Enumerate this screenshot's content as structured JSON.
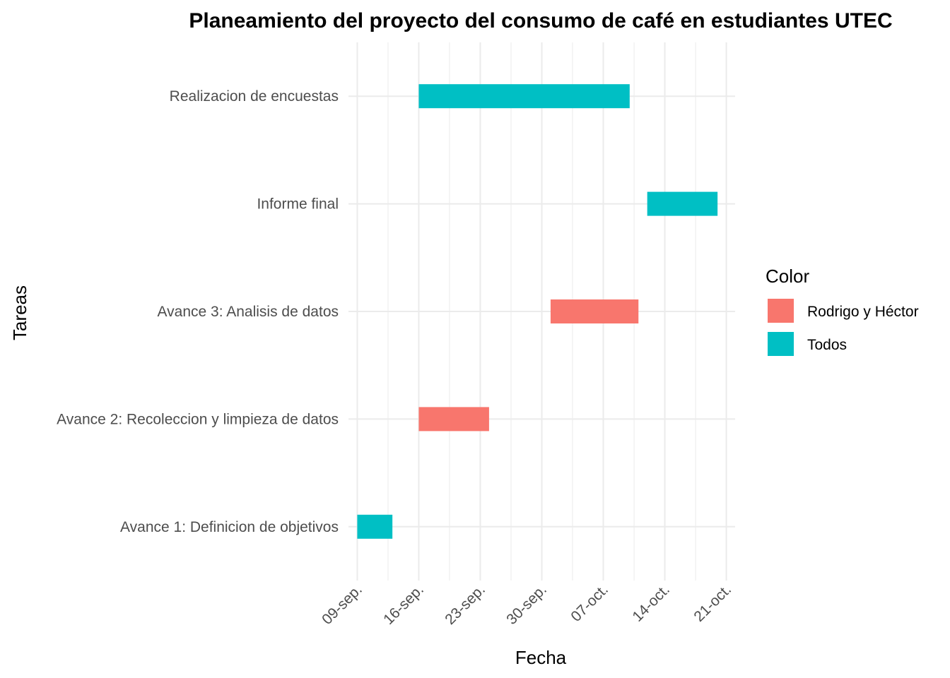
{
  "chart_data": {
    "type": "gantt",
    "title": "Planeamiento del proyecto del consumo de café en estudiantes UTEC",
    "xlabel": "Fecha",
    "ylabel": "Tareas",
    "x_axis": {
      "type": "date",
      "ticks": [
        "09-sep.",
        "16-sep.",
        "23-sep.",
        "30-sep.",
        "07-oct.",
        "14-oct.",
        "21-oct."
      ],
      "tick_dates": [
        "2024-09-09",
        "2024-09-16",
        "2024-09-23",
        "2024-09-30",
        "2024-10-07",
        "2024-10-14",
        "2024-10-21"
      ],
      "range": [
        "2024-09-08",
        "2024-10-22"
      ]
    },
    "grid": true,
    "legend": {
      "title": "Color",
      "position": "right",
      "entries": [
        {
          "label": "Rodrigo y Héctor",
          "color": "#F8766D"
        },
        {
          "label": "Todos",
          "color": "#00BFC4"
        }
      ]
    },
    "tasks": [
      {
        "name": "Realizacion de encuestas",
        "start": "2024-09-16",
        "end": "2024-10-10",
        "group": "Todos"
      },
      {
        "name": "Informe final",
        "start": "2024-10-12",
        "end": "2024-10-20",
        "group": "Todos"
      },
      {
        "name": "Avance 3: Analisis de datos",
        "start": "2024-10-01",
        "end": "2024-10-11",
        "group": "Rodrigo y Héctor"
      },
      {
        "name": "Avance 2: Recoleccion y limpieza de datos",
        "start": "2024-09-16",
        "end": "2024-09-24",
        "group": "Rodrigo y Héctor"
      },
      {
        "name": "Avance 1: Definicion de objetivos",
        "start": "2024-09-09",
        "end": "2024-09-13",
        "group": "Todos"
      }
    ]
  }
}
